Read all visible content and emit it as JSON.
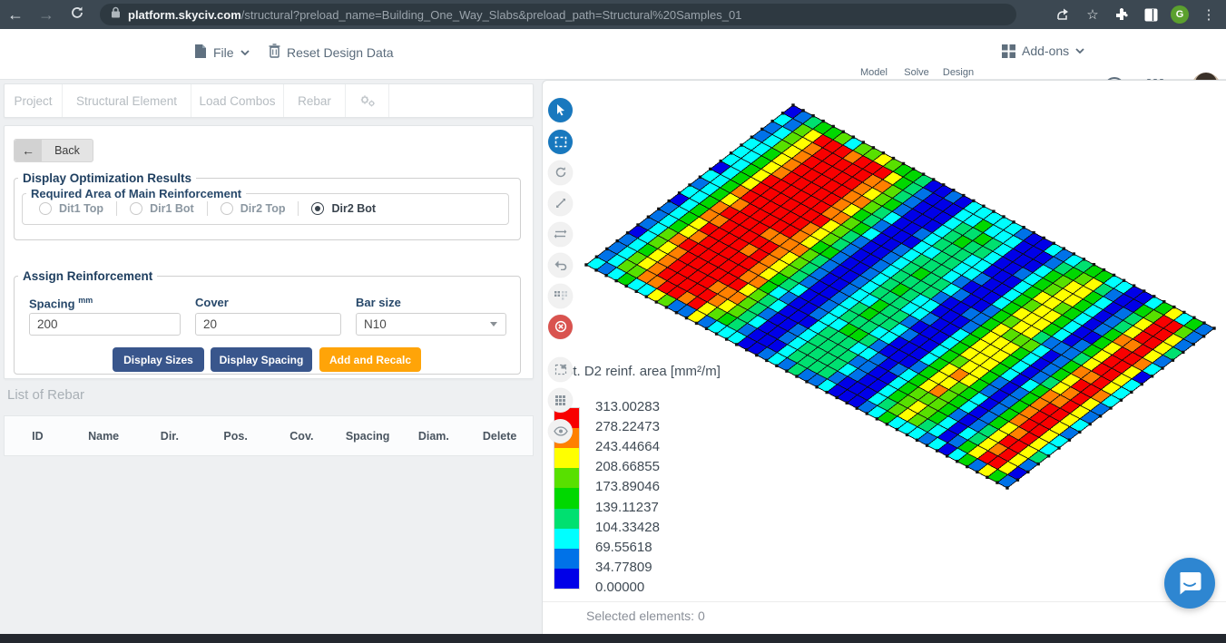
{
  "browser": {
    "url_host": "platform.skyciv.com",
    "url_path": "/structural?preload_name=Building_One_Way_Slabs&preload_path=Structural%20Samples_01",
    "profile_initial": "G"
  },
  "toolbar": {
    "file_label": "File",
    "reset_label": "Reset Design Data",
    "addons_label": "Add-ons",
    "help_label": "?",
    "steps": [
      {
        "label": "Model",
        "done": true
      },
      {
        "label": "Solve",
        "done": true
      },
      {
        "label": "Design",
        "done": false
      }
    ]
  },
  "tabs": [
    "Project",
    "Structural Element",
    "Load Combos",
    "Rebar"
  ],
  "panel": {
    "back_label": "Back",
    "display_opt_legend": "Display Optimization Results",
    "required_area_legend": "Required Area of Main Reinforcement",
    "radios": [
      {
        "label": "Dit1 Top",
        "selected": false
      },
      {
        "label": "Dir1 Bot",
        "selected": false
      },
      {
        "label": "Dir2 Top",
        "selected": false
      },
      {
        "label": "Dir2 Bot",
        "selected": true
      }
    ],
    "assign_legend": "Assign Reinforcement",
    "spacing_label": "Spacing",
    "spacing_unit": "mm",
    "spacing_value": "200",
    "cover_label": "Cover",
    "cover_value": "20",
    "barsize_label": "Bar size",
    "barsize_value": "N10",
    "buttons": {
      "display_sizes": "Display Sizes",
      "display_spacing": "Display Spacing",
      "add_recalc": "Add and Recalc"
    },
    "list_header": "List of Rebar",
    "table_columns": [
      "ID",
      "Name",
      "Dir.",
      "Pos.",
      "Cov.",
      "Spacing",
      "Diam.",
      "Delete"
    ]
  },
  "viewer": {
    "selected_text": "Selected elements: 0"
  },
  "chart_data": {
    "type": "heatmap",
    "title": "Bot. D2 reinf. area [mm²/m]",
    "unit": "mm²/m",
    "value_range": [
      0,
      313.00283
    ],
    "band_size": 34.77809,
    "legend_values": [
      "313.00283",
      "278.22473",
      "243.44664",
      "208.66855",
      "173.89046",
      "139.11237",
      "104.33428",
      "69.55618",
      "34.77809",
      "0.00000"
    ],
    "legend_colors": [
      "#f80000",
      "#ff8000",
      "#ffff00",
      "#58e000",
      "#00d800",
      "#00e070",
      "#00ffff",
      "#0072e8",
      "#0000e8"
    ],
    "grid": {
      "cols": 42,
      "rows": 20
    },
    "corners": {
      "a": [
        276,
        27
      ],
      "b": [
        740,
        273
      ],
      "d": [
        48,
        203
      ]
    },
    "column_profile": [
      18,
      85,
      165,
      230,
      275,
      298,
      302,
      300,
      295,
      288,
      270,
      235,
      185,
      125,
      60,
      16,
      14,
      45,
      90,
      115,
      128,
      126,
      112,
      80,
      35,
      14,
      20,
      75,
      150,
      205,
      225,
      210,
      155,
      80,
      18,
      55,
      150,
      245,
      295,
      300,
      228,
      60
    ],
    "layout": "4-span one-way slab, bottom D2 reinforcement demand; red = end-span midspans, blue = supports/edges"
  }
}
